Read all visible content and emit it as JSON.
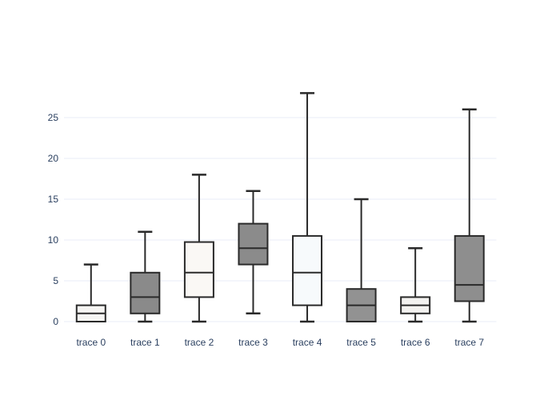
{
  "chart_data": {
    "type": "box",
    "title": "",
    "xlabel": "",
    "ylabel": "",
    "categories": [
      "trace 0",
      "trace 1",
      "trace 2",
      "trace 3",
      "trace 4",
      "trace 5",
      "trace 6",
      "trace 7"
    ],
    "yticks": [
      0,
      5,
      10,
      15,
      20,
      25
    ],
    "ylim": [
      -1.6,
      29.6
    ],
    "grid": true,
    "legend": "none",
    "series": [
      {
        "name": "trace 0",
        "min": 0,
        "q1": 0,
        "median": 1,
        "q3": 2,
        "max": 7,
        "fill": "#f6f5f3"
      },
      {
        "name": "trace 1",
        "min": 0,
        "q1": 1,
        "median": 3,
        "q3": 6,
        "max": 11,
        "fill": "#8a8a8a"
      },
      {
        "name": "trace 2",
        "min": 0,
        "q1": 3,
        "median": 6,
        "q3": 9.75,
        "max": 18,
        "fill": "#faf8f5"
      },
      {
        "name": "trace 3",
        "min": 1,
        "q1": 7,
        "median": 9,
        "q3": 12,
        "max": 16,
        "fill": "#8b8b8b"
      },
      {
        "name": "trace 4",
        "min": 0,
        "q1": 2,
        "median": 6,
        "q3": 10.5,
        "max": 28,
        "fill": "#f7fafc"
      },
      {
        "name": "trace 5",
        "min": 0,
        "q1": 0,
        "median": 2,
        "q3": 4,
        "max": 15,
        "fill": "#929292"
      },
      {
        "name": "trace 6",
        "min": 0,
        "q1": 1,
        "median": 2,
        "q3": 3,
        "max": 9,
        "fill": "#f3f2f0"
      },
      {
        "name": "trace 7",
        "min": 0,
        "q1": 2.5,
        "median": 4.5,
        "q3": 10.5,
        "max": 26,
        "fill": "#8e8e8e"
      }
    ],
    "colors": {
      "background": "#ffffff",
      "grid": "#e9eef7",
      "text": "#2a3f5f",
      "box_line": "#2a2a2a"
    }
  }
}
